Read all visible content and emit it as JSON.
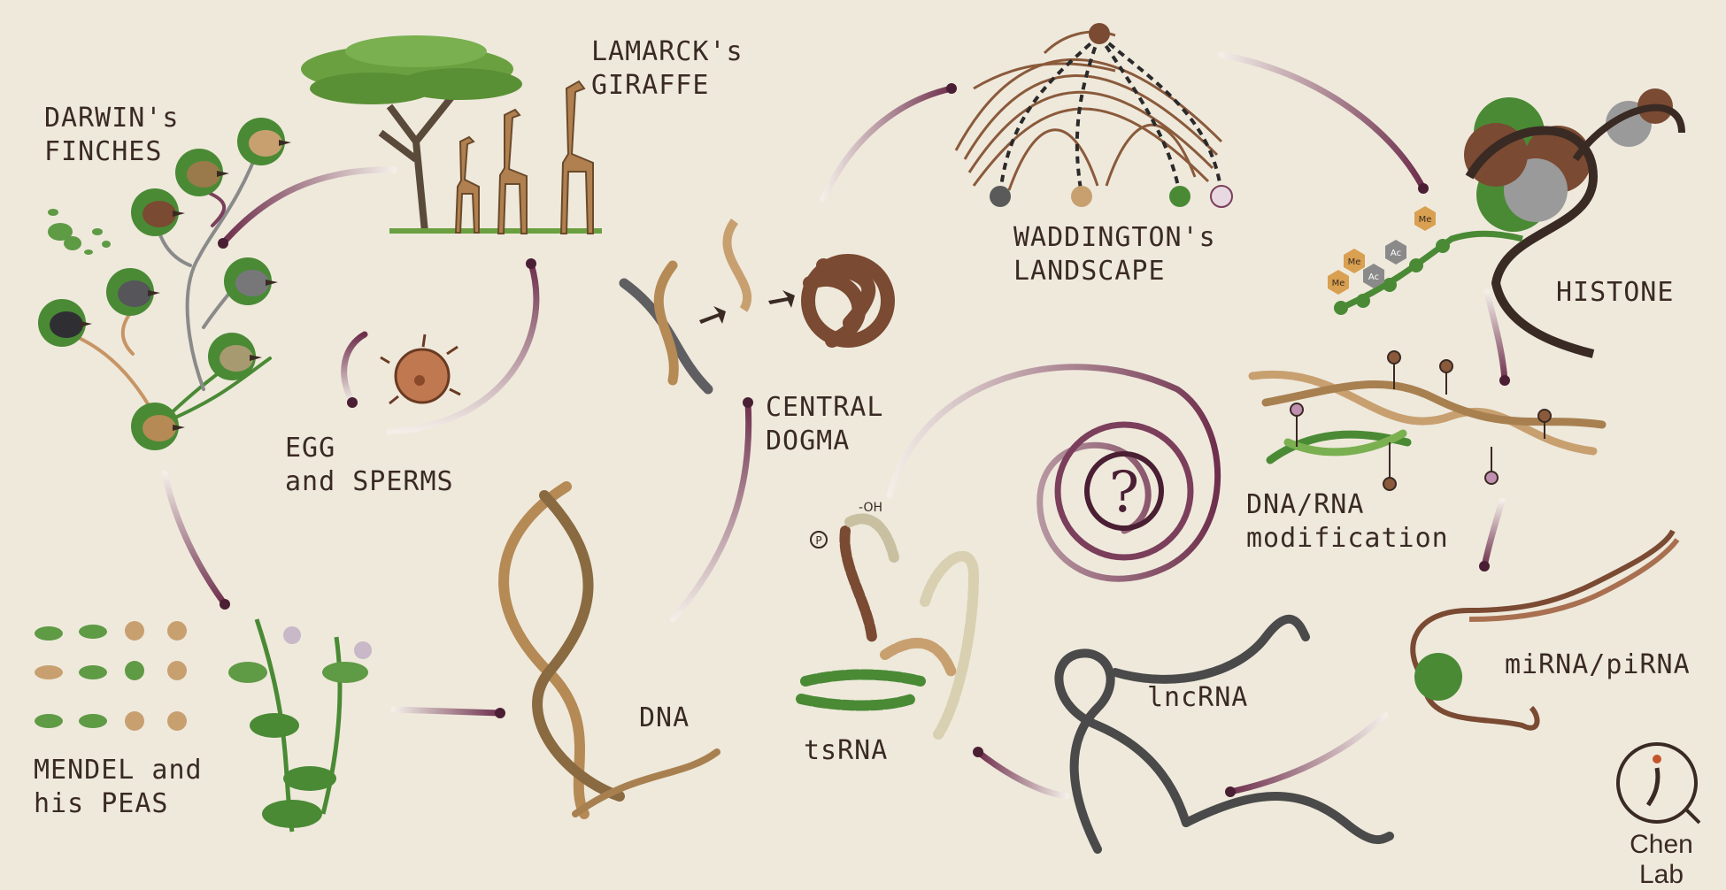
{
  "labels": {
    "darwin": [
      "DARWIN's",
      "FINCHES"
    ],
    "lamarck": [
      "LAMARCK's",
      "GIRAFFE"
    ],
    "waddington": [
      "WADDINGTON's",
      "LANDSCAPE"
    ],
    "histone": "HISTONE",
    "egg": [
      "EGG",
      "and SPERMS"
    ],
    "central_dogma": [
      "CENTRAL",
      "DOGMA"
    ],
    "dna_rna_mod": [
      "DNA/RNA",
      "modification"
    ],
    "mendel": [
      "MENDEL and",
      "his PEAS"
    ],
    "dna": "DNA",
    "tsrna": "tsRNA",
    "lncrna": "lncRNA",
    "mirna": "miRNA/piRNA",
    "center_symbol": "?",
    "brand": "Chen Lab",
    "trna_oh": "-OH",
    "trna_p": "P",
    "mods": [
      "Me",
      "Ac",
      "Me",
      "Ac",
      "Me"
    ]
  },
  "colors": {
    "background": "#efe9dc",
    "ink": "#3a2a24",
    "arrow": "#7b3f5c",
    "arrow_light": "#d9c4cc",
    "leaf": "#4a8a35",
    "brown": "#8a5a3b",
    "tan": "#c8a070",
    "grey": "#5a5a5a"
  },
  "icons": [
    "finch-icon",
    "giraffe-icon",
    "acacia-tree-icon",
    "egg-cell-icon",
    "dna-helix-icon",
    "protein-icon",
    "landscape-icon",
    "nucleosome-icon",
    "pea-plant-icon",
    "trna-icon",
    "lncrna-icon",
    "mirna-icon",
    "question-mark-icon"
  ]
}
